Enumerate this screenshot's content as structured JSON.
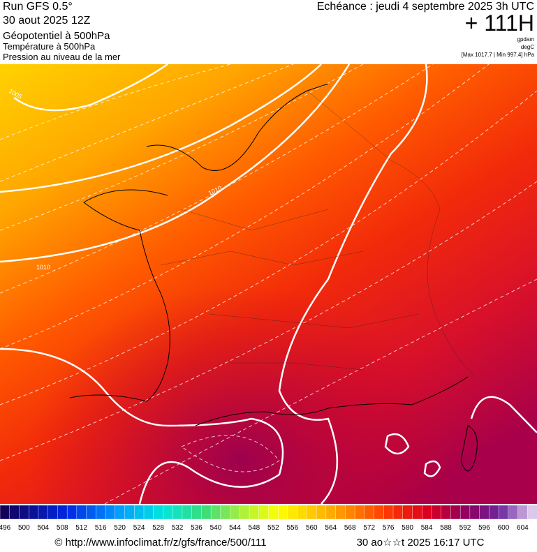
{
  "header": {
    "run": "Run GFS 0.5°",
    "date": "30 aout 2025 12Z",
    "field1": "Géopotentiel à 500hPa",
    "field2": "Température à 500hPa",
    "field3": "Pression au niveau de la mer",
    "echeance": "Echéance : jeudi 4 septembre 2025 3h UTC",
    "lead": "+ 111H",
    "unit1": "gpdam",
    "unit2": "degC",
    "range": "[Max 1017.7 | Min 997.4] hPa"
  },
  "map": {
    "contour_labels": [
      "1005",
      "1010",
      "1010"
    ]
  },
  "colorbar": {
    "labels": [
      496,
      500,
      504,
      508,
      512,
      516,
      520,
      524,
      528,
      532,
      536,
      540,
      544,
      548,
      552,
      556,
      560,
      564,
      568,
      572,
      576,
      580,
      584,
      588,
      592,
      596,
      600,
      604
    ]
  },
  "footer": {
    "url": "© http://www.infoclimat.fr/z/gfs/france/500/111",
    "generated": "30 ao☆☆t 2025 16:17 UTC"
  }
}
